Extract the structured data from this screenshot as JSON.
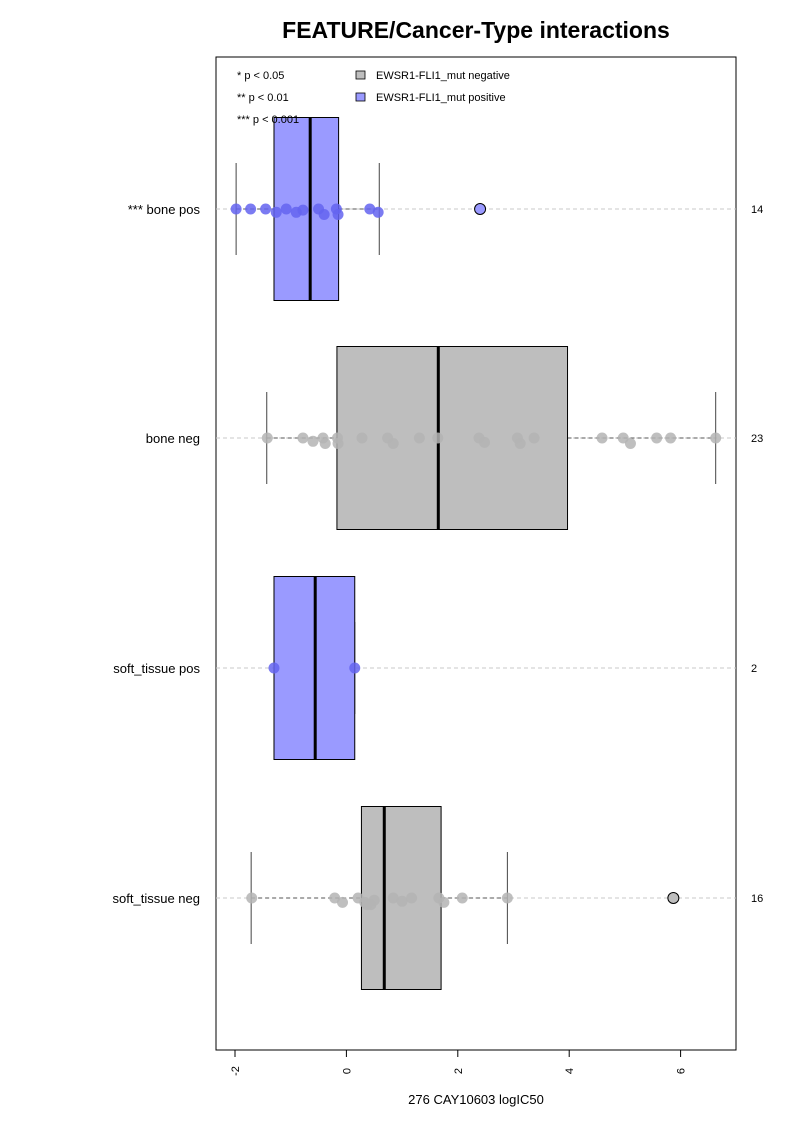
{
  "chart_data": {
    "type": "box",
    "orientation": "horizontal",
    "title": "FEATURE/Cancer-Type interactions",
    "xlabel": "276 CAY10603 logIC50",
    "ylabel": "",
    "xlim": [
      -2.3,
      7.0
    ],
    "xticks": [
      -2,
      0,
      2,
      4,
      6
    ],
    "xtick_labels": [
      "-2",
      "0",
      "2",
      "4",
      "6"
    ],
    "grid": "dashed horizontal at each group",
    "legend": {
      "position": "top",
      "significance": [
        "* p < 0.05",
        "** p < 0.01",
        "*** p < 0.001"
      ],
      "entries": [
        {
          "label": "EWSR1-FLI1_mut negative",
          "color": "#bebebe"
        },
        {
          "label": "EWSR1-FLI1_mut positive",
          "color": "#9a9aff"
        }
      ]
    },
    "colors": {
      "negative_fill": "#bebebe",
      "positive_fill": "#9a9aff",
      "negative_point": "#b4b4b4",
      "positive_point": "#6464f0"
    },
    "groups": [
      {
        "label": "*** bone pos",
        "status": "positive",
        "n": "14",
        "box": {
          "whisker_low": -1.98,
          "q1": -1.3,
          "median": -0.65,
          "q3": -0.14,
          "whisker_high": 0.59
        },
        "outliers": [
          2.4
        ],
        "points": [
          {
            "x": -1.98,
            "j": 0.0
          },
          {
            "x": -1.72,
            "j": 0.0
          },
          {
            "x": -1.45,
            "j": 0.0
          },
          {
            "x": -1.26,
            "j": -0.3
          },
          {
            "x": -1.08,
            "j": 0.0
          },
          {
            "x": -0.9,
            "j": -0.3
          },
          {
            "x": -0.78,
            "j": 0.1
          },
          {
            "x": -0.5,
            "j": 0.0
          },
          {
            "x": -0.4,
            "j": -0.5
          },
          {
            "x": -0.18,
            "j": 0.0
          },
          {
            "x": -0.15,
            "j": -0.5
          },
          {
            "x": 0.42,
            "j": 0.0
          },
          {
            "x": 0.57,
            "j": -0.3
          }
        ]
      },
      {
        "label": "bone neg",
        "status": "negative",
        "n": "23",
        "box": {
          "whisker_low": -1.43,
          "q1": -0.17,
          "median": 1.65,
          "q3": 3.97,
          "whisker_high": 6.63
        },
        "outliers": [],
        "points": [
          {
            "x": -1.42,
            "j": 0.0
          },
          {
            "x": -0.78,
            "j": 0.0
          },
          {
            "x": -0.6,
            "j": -0.3
          },
          {
            "x": -0.42,
            "j": 0.0
          },
          {
            "x": -0.38,
            "j": -0.5
          },
          {
            "x": -0.16,
            "j": 0.0
          },
          {
            "x": -0.15,
            "j": -0.5
          },
          {
            "x": 0.28,
            "j": 0.0
          },
          {
            "x": 0.74,
            "j": 0.0
          },
          {
            "x": 0.84,
            "j": -0.5
          },
          {
            "x": 1.31,
            "j": 0.0
          },
          {
            "x": 1.64,
            "j": 0.0
          },
          {
            "x": 2.38,
            "j": 0.0
          },
          {
            "x": 2.48,
            "j": -0.4
          },
          {
            "x": 3.07,
            "j": 0.0
          },
          {
            "x": 3.12,
            "j": -0.5
          },
          {
            "x": 3.37,
            "j": 0.0
          },
          {
            "x": 4.59,
            "j": 0.0
          },
          {
            "x": 4.97,
            "j": 0.0
          },
          {
            "x": 5.1,
            "j": -0.5
          },
          {
            "x": 5.57,
            "j": 0.0
          },
          {
            "x": 5.82,
            "j": 0.0
          },
          {
            "x": 6.63,
            "j": 0.0
          }
        ]
      },
      {
        "label": "soft_tissue pos",
        "status": "positive",
        "n": "2",
        "box": {
          "whisker_low": -1.3,
          "q1": -1.3,
          "median": -0.56,
          "q3": 0.15,
          "whisker_high": 0.15
        },
        "outliers": [],
        "points": [
          {
            "x": -1.3,
            "j": 0.0
          },
          {
            "x": 0.15,
            "j": 0.0
          }
        ]
      },
      {
        "label": "soft_tissue neg",
        "status": "negative",
        "n": "16",
        "box": {
          "whisker_low": -1.71,
          "q1": 0.27,
          "median": 0.68,
          "q3": 1.7,
          "whisker_high": 2.89
        },
        "outliers": [
          5.87
        ],
        "points": [
          {
            "x": -1.7,
            "j": 0.0
          },
          {
            "x": -0.21,
            "j": 0.0
          },
          {
            "x": -0.07,
            "j": -0.4
          },
          {
            "x": 0.21,
            "j": 0.0
          },
          {
            "x": 0.33,
            "j": -0.4
          },
          {
            "x": 0.37,
            "j": 0.6
          },
          {
            "x": 0.44,
            "j": 0.6
          },
          {
            "x": 0.5,
            "j": 0.2
          },
          {
            "x": 0.84,
            "j": 0.0
          },
          {
            "x": 1.0,
            "j": -0.3
          },
          {
            "x": 1.17,
            "j": 0.0
          },
          {
            "x": 1.66,
            "j": 0.0
          },
          {
            "x": 1.75,
            "j": -0.4
          },
          {
            "x": 2.08,
            "j": 0.0
          },
          {
            "x": 2.89,
            "j": 0.0
          }
        ]
      }
    ]
  }
}
